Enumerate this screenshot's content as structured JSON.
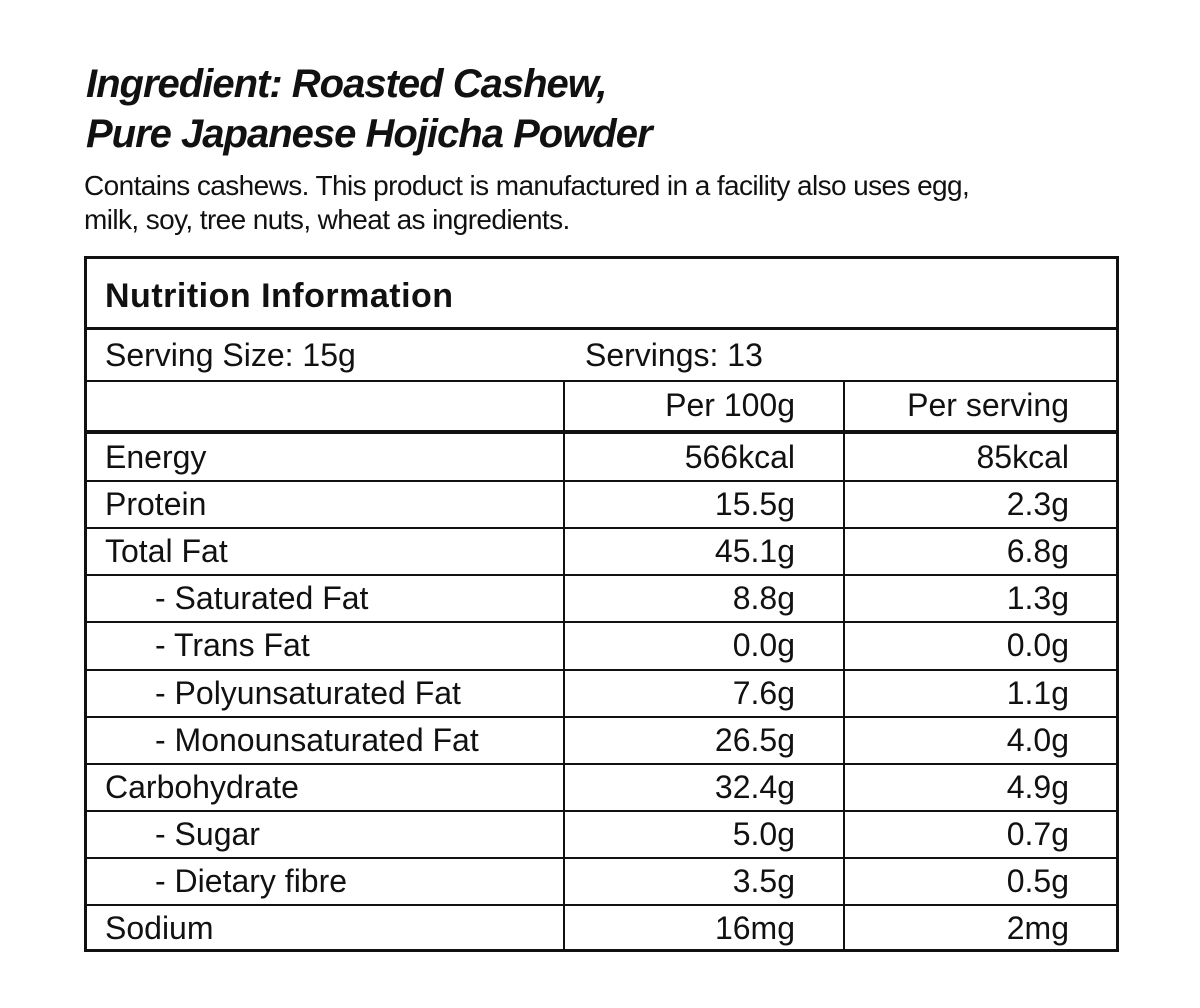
{
  "header": {
    "title_lines": [
      "Ingredient: Roasted Cashew,",
      "Pure Japanese Hojicha Powder"
    ],
    "allergen_lines": [
      "Contains cashews. This product is manufactured in a facility also uses egg,",
      "milk, soy, tree nuts, wheat as ingredients."
    ]
  },
  "table": {
    "title": "Nutrition Information",
    "serving_size": "Serving Size: 15g",
    "servings": "Servings: 13",
    "columns": [
      "Per 100g",
      "Per serving"
    ],
    "rows": [
      [
        "Energy",
        "566kcal",
        "85kcal"
      ],
      [
        "Protein",
        "15.5g",
        "2.3g"
      ],
      [
        "Total Fat",
        "45.1g",
        "6.8g"
      ],
      [
        "- Saturated Fat",
        "8.8g",
        "1.3g"
      ],
      [
        "- Trans Fat",
        "0.0g",
        "0.0g"
      ],
      [
        "- Polyunsaturated Fat",
        "7.6g",
        "1.1g"
      ],
      [
        "- Monounsaturated Fat",
        "26.5g",
        "4.0g"
      ],
      [
        "Carbohydrate",
        "32.4g",
        "4.9g"
      ],
      [
        "- Sugar",
        "5.0g",
        "0.7g"
      ],
      [
        "- Dietary fibre",
        "3.5g",
        "0.5g"
      ],
      [
        "Sodium",
        "16mg",
        "2mg"
      ]
    ]
  }
}
